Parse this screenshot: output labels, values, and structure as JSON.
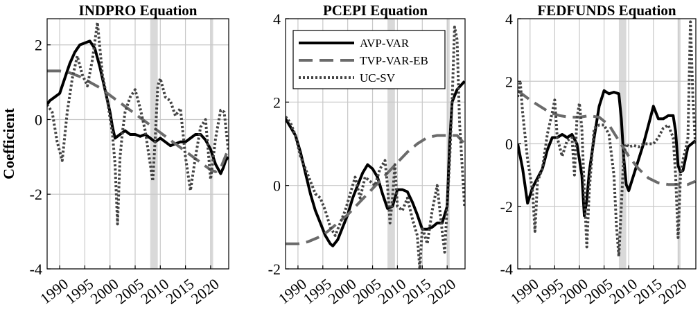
{
  "chart_data": [
    {
      "type": "line",
      "title": "INDPRO Equation",
      "ylabel": "Coefficient",
      "ylim": [
        -4,
        2.7
      ],
      "yticks": [
        -4,
        -2,
        0,
        2
      ],
      "xlim": [
        1987.5,
        2023.6
      ],
      "xticks": [
        1990,
        1995,
        2000,
        2005,
        2010,
        2015,
        2020
      ],
      "grid": true,
      "recessions": [
        [
          2008.0,
          2009.5
        ],
        [
          2020.0,
          2020.5
        ]
      ],
      "series": [
        {
          "name": "AVP-VAR",
          "style": "solid",
          "color": "#000000",
          "x": [
            1987.5,
            1988,
            1989,
            1990,
            1991,
            1992,
            1993,
            1994,
            1995,
            1996,
            1997,
            1998,
            1999,
            2000,
            2000.5,
            2001,
            2002,
            2003,
            2004,
            2005,
            2006,
            2007,
            2008,
            2009,
            2010,
            2011,
            2012,
            2013,
            2014,
            2015,
            2016,
            2017,
            2018,
            2019,
            2020,
            2021,
            2022,
            2022.5,
            2023,
            2023.5
          ],
          "y": [
            0.4,
            0.5,
            0.6,
            0.7,
            1.1,
            1.5,
            1.8,
            2.0,
            2.05,
            2.1,
            1.9,
            1.4,
            0.8,
            0.2,
            -0.2,
            -0.5,
            -0.4,
            -0.3,
            -0.4,
            -0.4,
            -0.45,
            -0.4,
            -0.5,
            -0.6,
            -0.5,
            -0.6,
            -0.7,
            -0.65,
            -0.6,
            -0.6,
            -0.5,
            -0.4,
            -0.4,
            -0.55,
            -0.8,
            -1.2,
            -1.45,
            -1.3,
            -1.1,
            -1.0
          ]
        },
        {
          "name": "TVP-VAR-EB",
          "style": "dashed",
          "color": "#6b6b6b",
          "x": [
            1987.5,
            1990,
            1992,
            1994,
            1996,
            1998,
            2000,
            2002,
            2004,
            2006,
            2008,
            2010,
            2012,
            2014,
            2016,
            2018,
            2020,
            2021,
            2022,
            2023.5
          ],
          "y": [
            1.3,
            1.3,
            1.25,
            1.15,
            1.0,
            0.85,
            0.65,
            0.45,
            0.25,
            0.05,
            -0.15,
            -0.35,
            -0.55,
            -0.75,
            -0.95,
            -1.15,
            -1.35,
            -1.4,
            -1.3,
            -0.8
          ]
        },
        {
          "name": "UC-SV",
          "style": "dotted",
          "color": "#444444",
          "x": [
            1987.5,
            1988.5,
            1989.5,
            1990.5,
            1991.5,
            1992.5,
            1993.5,
            1994.5,
            1995.5,
            1996.5,
            1997.5,
            1998.5,
            1999.5,
            2000.5,
            2001,
            2001.5,
            2002,
            2002.5,
            2003,
            2004,
            2005,
            2006,
            2007,
            2008,
            2008.5,
            2009,
            2009.5,
            2010,
            2011,
            2012,
            2013,
            2014,
            2015,
            2016,
            2017,
            2018,
            2019,
            2020,
            2021,
            2022,
            2022.7,
            2023.5
          ],
          "y": [
            0.4,
            0.2,
            -0.6,
            -1.1,
            0.2,
            1.1,
            1.7,
            1.2,
            0.9,
            1.6,
            2.6,
            1.2,
            0.5,
            -0.4,
            -1.2,
            -2.8,
            -1.0,
            -0.3,
            0.2,
            0.6,
            0.8,
            0.3,
            -0.3,
            -1.2,
            -1.65,
            -0.5,
            0.9,
            1.1,
            0.6,
            0.5,
            0.1,
            0.3,
            -1.0,
            -1.9,
            -1.0,
            -0.2,
            0.0,
            -1.6,
            -0.5,
            0.25,
            0.2,
            -0.8
          ]
        }
      ]
    },
    {
      "type": "line",
      "title": "PCEPI Equation",
      "ylim": [
        -2,
        4
      ],
      "yticks": [
        -2,
        0,
        2,
        4
      ],
      "xlim": [
        1987.5,
        2023.6
      ],
      "xticks": [
        1990,
        1995,
        2000,
        2005,
        2010,
        2015,
        2020
      ],
      "grid": true,
      "legend": {
        "position": "top-right",
        "entries": [
          "AVP-VAR",
          "TVP-VAR-EB",
          "UC-SV"
        ]
      },
      "recessions": [
        [
          2008.0,
          2009.5
        ],
        [
          2020.0,
          2020.5
        ]
      ],
      "series": [
        {
          "name": "AVP-VAR",
          "style": "solid",
          "color": "#000000",
          "x": [
            1987.5,
            1988.5,
            1989.5,
            1990.5,
            1991.5,
            1992.5,
            1993.5,
            1994.5,
            1995.5,
            1996.5,
            1997,
            1998,
            1999,
            2000,
            2001,
            2002,
            2003,
            2004,
            2005,
            2006,
            2007,
            2008,
            2009,
            2010,
            2011,
            2012,
            2013,
            2014,
            2015,
            2016,
            2017,
            2018,
            2019,
            2020,
            2020.5,
            2021,
            2022,
            2023.5
          ],
          "y": [
            1.6,
            1.4,
            1.2,
            0.8,
            0.3,
            -0.2,
            -0.6,
            -0.9,
            -1.2,
            -1.4,
            -1.45,
            -1.3,
            -1.0,
            -0.7,
            -0.3,
            0.0,
            0.3,
            0.5,
            0.4,
            0.2,
            -0.2,
            -0.55,
            -0.5,
            -0.1,
            -0.1,
            -0.15,
            -0.4,
            -0.7,
            -1.05,
            -1.05,
            -1.0,
            -0.9,
            -0.9,
            -0.5,
            1.0,
            2.0,
            2.3,
            2.5
          ]
        },
        {
          "name": "TVP-VAR-EB",
          "style": "dashed",
          "color": "#6b6b6b",
          "x": [
            1987.5,
            1990,
            1992,
            1994,
            1996,
            1998,
            2000,
            2002,
            2004,
            2006,
            2008,
            2010,
            2012,
            2014,
            2016,
            2018,
            2020,
            2022,
            2023.5
          ],
          "y": [
            -1.4,
            -1.4,
            -1.35,
            -1.25,
            -1.1,
            -0.9,
            -0.7,
            -0.45,
            -0.2,
            0.05,
            0.3,
            0.55,
            0.8,
            1.0,
            1.15,
            1.2,
            1.2,
            1.2,
            1.0
          ]
        },
        {
          "name": "UC-SV",
          "style": "dotted",
          "color": "#444444",
          "x": [
            1987.5,
            1988.5,
            1989.5,
            1990.5,
            1991.5,
            1992.5,
            1993.5,
            1994.5,
            1995.5,
            1996.5,
            1997.5,
            1998.5,
            1999.5,
            2000.5,
            2001.5,
            2002.5,
            2003.5,
            2004.5,
            2005.5,
            2006.5,
            2007.5,
            2008,
            2008.5,
            2009,
            2009.5,
            2010,
            2011,
            2012,
            2013,
            2014,
            2014.5,
            2015,
            2016,
            2017,
            2018,
            2019,
            2019.5,
            2020,
            2020.5,
            2021,
            2021.5,
            2022,
            2022.5,
            2023,
            2023.5
          ],
          "y": [
            1.65,
            1.5,
            1.2,
            0.7,
            0.4,
            0.1,
            -0.2,
            -0.3,
            -0.6,
            -1.0,
            -1.2,
            -0.9,
            -0.6,
            -0.2,
            0.2,
            -0.3,
            0.2,
            0.1,
            0.0,
            0.4,
            0.6,
            0.0,
            -0.9,
            -0.3,
            0.5,
            -0.5,
            -0.6,
            -0.3,
            -0.8,
            -1.2,
            -2.0,
            -1.0,
            -1.4,
            -0.6,
            0.0,
            -1.1,
            -1.6,
            -0.5,
            0.6,
            2.0,
            3.8,
            3.5,
            1.5,
            0.5,
            -0.5
          ]
        }
      ]
    },
    {
      "type": "line",
      "title": "FEDFUNDS Equation",
      "ylim": [
        -4,
        4
      ],
      "yticks": [
        -4,
        -2,
        0,
        2,
        4
      ],
      "xlim": [
        1987.5,
        2023.6
      ],
      "xticks": [
        1990,
        1995,
        2000,
        2005,
        2010,
        2015,
        2020
      ],
      "grid": true,
      "recessions": [
        [
          2008.0,
          2009.5
        ],
        [
          2020.0,
          2020.5
        ]
      ],
      "series": [
        {
          "name": "AVP-VAR",
          "style": "solid",
          "color": "#000000",
          "x": [
            1987.5,
            1988.5,
            1989.5,
            1990.5,
            1991.5,
            1992.5,
            1993.5,
            1994.5,
            1995.5,
            1996.5,
            1997.5,
            1998.5,
            1999.5,
            2000.5,
            2001,
            2001.5,
            2002,
            2003,
            2004,
            2005,
            2006,
            2007,
            2008,
            2008.5,
            2009,
            2009.5,
            2010,
            2011,
            2012,
            2013,
            2014,
            2015,
            2016,
            2017,
            2018,
            2019,
            2019.5,
            2020,
            2020.5,
            2021,
            2022,
            2023.5
          ],
          "y": [
            0.0,
            -0.8,
            -1.9,
            -1.4,
            -1.1,
            -0.8,
            -0.2,
            0.2,
            0.2,
            0.3,
            0.2,
            0.3,
            0.0,
            -1.0,
            -2.3,
            -1.8,
            -0.9,
            0.2,
            1.2,
            1.7,
            1.6,
            1.65,
            1.6,
            0.8,
            -0.5,
            -1.3,
            -1.5,
            -1.0,
            -0.5,
            0.0,
            0.6,
            1.2,
            0.8,
            0.8,
            0.9,
            0.9,
            0.4,
            -0.7,
            -0.9,
            -0.85,
            -0.1,
            0.1
          ]
        },
        {
          "name": "TVP-VAR-EB",
          "style": "dashed",
          "color": "#6b6b6b",
          "x": [
            1987.5,
            1990,
            1992,
            1994,
            1996,
            1998,
            2000,
            2002,
            2004,
            2006,
            2008,
            2010,
            2012,
            2014,
            2016,
            2018,
            2020,
            2022,
            2023.5
          ],
          "y": [
            1.7,
            1.4,
            1.2,
            1.0,
            0.9,
            0.85,
            0.85,
            0.9,
            0.85,
            0.6,
            0.1,
            -0.4,
            -0.8,
            -1.1,
            -1.25,
            -1.3,
            -1.3,
            -1.3,
            -1.2
          ]
        },
        {
          "name": "UC-SV",
          "style": "dotted",
          "color": "#444444",
          "x": [
            1987.5,
            1988,
            1988.5,
            1989.5,
            1990.5,
            1991,
            1991.5,
            1992.5,
            1993.5,
            1994.5,
            1995,
            1995.5,
            1996.5,
            1997.5,
            1998.5,
            1999,
            1999.5,
            2000,
            2000.5,
            2001,
            2001.5,
            2002,
            2003,
            2004,
            2005,
            2006,
            2007,
            2007.5,
            2008,
            2008.5,
            2009,
            2009.5,
            2010,
            2011,
            2012,
            2013,
            2014,
            2015,
            2016,
            2017,
            2018,
            2019,
            2019.5,
            2020,
            2020.5,
            2021,
            2021.5,
            2022,
            2022.5,
            2023,
            2023.5
          ],
          "y": [
            1.5,
            2.0,
            1.0,
            -0.5,
            -1.5,
            -2.8,
            -1.2,
            -0.8,
            0.3,
            1.0,
            1.4,
            0.2,
            -0.4,
            0.1,
            0.2,
            -1.0,
            0.8,
            1.3,
            0.5,
            -1.5,
            -3.3,
            -1.5,
            0.5,
            0.6,
            0.6,
            0.3,
            -1.0,
            -2.6,
            -3.6,
            -2.0,
            -0.3,
            0.0,
            -0.1,
            -0.05,
            -0.1,
            0.0,
            0.0,
            0.0,
            0.2,
            0.5,
            0.6,
            0.2,
            -1.0,
            -3.0,
            -1.0,
            -0.5,
            -0.2,
            0.2,
            3.9,
            1.5,
            0.0
          ]
        }
      ]
    }
  ]
}
